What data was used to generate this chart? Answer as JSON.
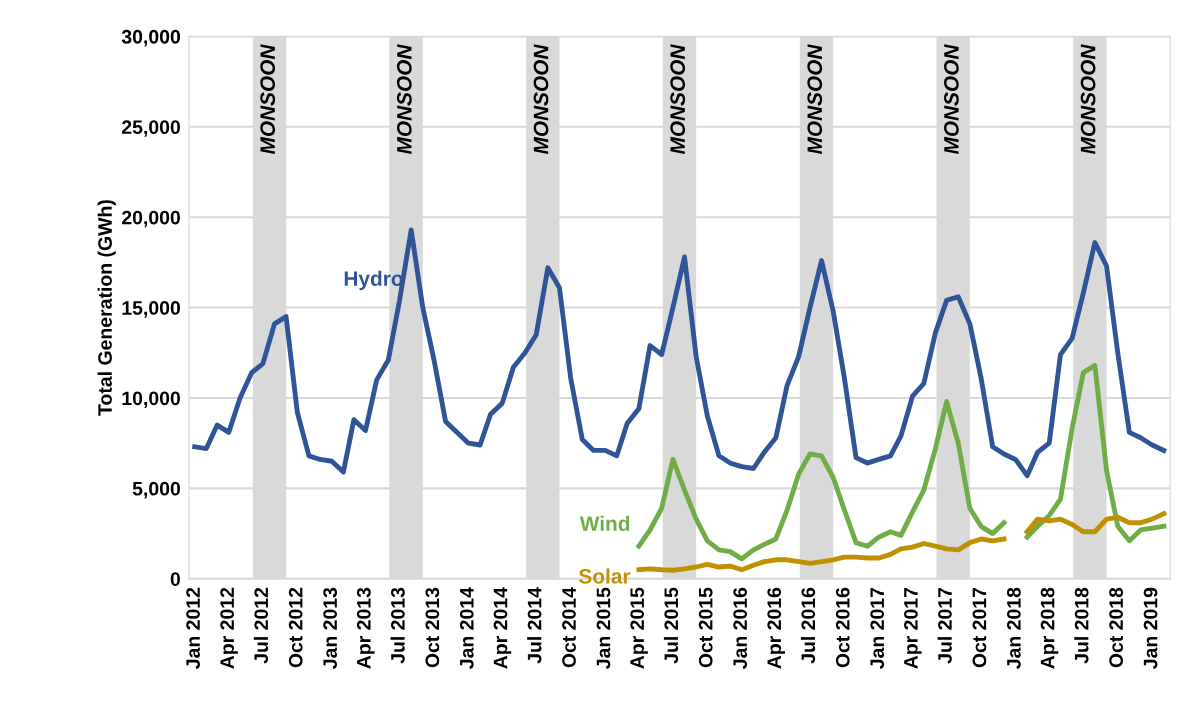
{
  "chart_data": {
    "type": "line",
    "ylabel": "Total Generation (GWh)",
    "x": [
      "2012-01",
      "2012-02",
      "2012-03",
      "2012-04",
      "2012-05",
      "2012-06",
      "2012-07",
      "2012-08",
      "2012-09",
      "2012-10",
      "2012-11",
      "2012-12",
      "2013-01",
      "2013-02",
      "2013-03",
      "2013-04",
      "2013-05",
      "2013-06",
      "2013-07",
      "2013-08",
      "2013-09",
      "2013-10",
      "2013-11",
      "2013-12",
      "2014-01",
      "2014-02",
      "2014-03",
      "2014-04",
      "2014-05",
      "2014-06",
      "2014-07",
      "2014-08",
      "2014-09",
      "2014-10",
      "2014-11",
      "2014-12",
      "2015-01",
      "2015-02",
      "2015-03",
      "2015-04",
      "2015-05",
      "2015-06",
      "2015-07",
      "2015-08",
      "2015-09",
      "2015-10",
      "2015-11",
      "2015-12",
      "2016-01",
      "2016-02",
      "2016-03",
      "2016-04",
      "2016-05",
      "2016-06",
      "2016-07",
      "2016-08",
      "2016-09",
      "2016-10",
      "2016-11",
      "2016-12",
      "2017-01",
      "2017-02",
      "2017-03",
      "2017-04",
      "2017-05",
      "2017-06",
      "2017-07",
      "2017-08",
      "2017-09",
      "2017-10",
      "2017-11",
      "2017-12",
      "2018-01",
      "2018-02",
      "2018-03",
      "2018-04",
      "2018-05",
      "2018-06",
      "2018-07",
      "2018-08",
      "2018-09",
      "2018-10",
      "2018-11",
      "2018-12",
      "2019-01",
      "2019-02"
    ],
    "series": [
      {
        "name": "Hydro",
        "color": "#2f5597",
        "values": [
          7300,
          7200,
          8500,
          8100,
          10000,
          11400,
          11900,
          14100,
          14500,
          9200,
          6800,
          6600,
          6500,
          5900,
          8800,
          8200,
          11000,
          12100,
          15400,
          19300,
          15000,
          12100,
          8700,
          8100,
          7500,
          7400,
          9100,
          9700,
          11700,
          12500,
          13500,
          17200,
          16100,
          11100,
          7700,
          7100,
          7100,
          6800,
          8600,
          9400,
          12900,
          12400,
          15000,
          17800,
          12300,
          9000,
          6800,
          6400,
          6200,
          6100,
          7000,
          7800,
          10700,
          12300,
          15000,
          17600,
          14800,
          11100,
          6700,
          6400,
          6600,
          6800,
          7900,
          10100,
          10800,
          13600,
          15400,
          15600,
          14100,
          11100,
          7300,
          6900,
          6600,
          5700,
          7000,
          7500,
          12400,
          13300,
          15800,
          18600,
          17300,
          12500,
          8100,
          7800,
          7400,
          7100
        ]
      },
      {
        "name": "Wind",
        "color": "#70ad47",
        "values": [
          null,
          null,
          null,
          null,
          null,
          null,
          null,
          null,
          null,
          null,
          null,
          null,
          null,
          null,
          null,
          null,
          null,
          null,
          null,
          null,
          null,
          null,
          null,
          null,
          null,
          null,
          null,
          null,
          null,
          null,
          null,
          null,
          null,
          null,
          null,
          null,
          null,
          null,
          null,
          1800,
          2700,
          3900,
          6600,
          4900,
          3300,
          2100,
          1600,
          1500,
          1100,
          1600,
          1900,
          2200,
          3800,
          5800,
          6900,
          6800,
          5600,
          3800,
          2000,
          1800,
          2300,
          2600,
          2400,
          3700,
          4900,
          7200,
          9800,
          7500,
          3900,
          2900,
          2500,
          3100,
          null,
          2300,
          2900,
          3500,
          4400,
          8300,
          11400,
          11800,
          6000,
          2900,
          2100,
          2700,
          2800,
          2900
        ]
      },
      {
        "name": "Solar",
        "color": "#bf9000",
        "values": [
          null,
          null,
          null,
          null,
          null,
          null,
          null,
          null,
          null,
          null,
          null,
          null,
          null,
          null,
          null,
          null,
          null,
          null,
          null,
          null,
          null,
          null,
          null,
          null,
          null,
          null,
          null,
          null,
          null,
          null,
          null,
          null,
          null,
          null,
          null,
          null,
          null,
          null,
          null,
          500,
          550,
          500,
          470,
          550,
          650,
          800,
          650,
          700,
          500,
          750,
          950,
          1050,
          1050,
          950,
          850,
          950,
          1050,
          1200,
          1200,
          1150,
          1150,
          1350,
          1650,
          1750,
          1950,
          1800,
          1650,
          1600,
          2000,
          2200,
          2100,
          2200,
          null,
          2600,
          3300,
          3200,
          3300,
          3000,
          2600,
          2600,
          3300,
          3400,
          3100,
          3100,
          3300,
          3600
        ]
      }
    ],
    "xlim": [
      "2011-12-17",
      "2019-02-18"
    ],
    "xticks": [
      {
        "value": "2012-01",
        "label": "Jan 2012"
      },
      {
        "value": "2012-04",
        "label": "Apr 2012"
      },
      {
        "value": "2012-07",
        "label": "Jul 2012"
      },
      {
        "value": "2012-10",
        "label": "Oct 2012"
      },
      {
        "value": "2013-01",
        "label": "Jan 2013"
      },
      {
        "value": "2013-04",
        "label": "Apr 2013"
      },
      {
        "value": "2013-07",
        "label": "Jul 2013"
      },
      {
        "value": "2013-10",
        "label": "Oct 2013"
      },
      {
        "value": "2014-01",
        "label": "Jan 2014"
      },
      {
        "value": "2014-04",
        "label": "Apr 2014"
      },
      {
        "value": "2014-07",
        "label": "Jul 2014"
      },
      {
        "value": "2014-10",
        "label": "Oct 2014"
      },
      {
        "value": "2015-01",
        "label": "Jan 2015"
      },
      {
        "value": "2015-04",
        "label": "Apr 2015"
      },
      {
        "value": "2015-07",
        "label": "Jul 2015"
      },
      {
        "value": "2015-10",
        "label": "Oct 2015"
      },
      {
        "value": "2016-01",
        "label": "Jan 2016"
      },
      {
        "value": "2016-04",
        "label": "Apr 2016"
      },
      {
        "value": "2016-07",
        "label": "Jul 2016"
      },
      {
        "value": "2016-10",
        "label": "Oct 2016"
      },
      {
        "value": "2017-01",
        "label": "Jan 2017"
      },
      {
        "value": "2017-04",
        "label": "Apr 2017"
      },
      {
        "value": "2017-07",
        "label": "Jul 2017"
      },
      {
        "value": "2017-10",
        "label": "Oct 2017"
      },
      {
        "value": "2018-01",
        "label": "Jan 2018"
      },
      {
        "value": "2018-04",
        "label": "Apr 2018"
      },
      {
        "value": "2018-07",
        "label": "Jul 2018"
      },
      {
        "value": "2018-10",
        "label": "Oct 2018"
      },
      {
        "value": "2019-01",
        "label": "Jan 2019"
      }
    ],
    "ylim": [
      0,
      30000
    ],
    "yticks": [
      0,
      {
        "value": 5000,
        "label": "5,000"
      },
      {
        "value": 10000,
        "label": "10,000"
      },
      {
        "value": 15000,
        "label": "15,000"
      },
      {
        "value": 20000,
        "label": "20,000"
      },
      {
        "value": 25000,
        "label": "25,000"
      },
      {
        "value": 30000,
        "label": "30,000"
      }
    ],
    "bands": [
      {
        "axis": "x",
        "from": "2012-06-04",
        "to": "2012-09-01",
        "label": "MONSOON",
        "color": "#d9d9d9"
      },
      {
        "axis": "x",
        "from": "2013-06-04",
        "to": "2013-09-01",
        "label": "MONSOON",
        "color": "#d9d9d9"
      },
      {
        "axis": "x",
        "from": "2014-06-04",
        "to": "2014-09-01",
        "label": "MONSOON",
        "color": "#d9d9d9"
      },
      {
        "axis": "x",
        "from": "2015-06-04",
        "to": "2015-09-01",
        "label": "MONSOON",
        "color": "#d9d9d9"
      },
      {
        "axis": "x",
        "from": "2016-06-04",
        "to": "2016-09-01",
        "label": "MONSOON",
        "color": "#d9d9d9"
      },
      {
        "axis": "x",
        "from": "2017-06-04",
        "to": "2017-09-01",
        "label": "MONSOON",
        "color": "#d9d9d9"
      },
      {
        "axis": "x",
        "from": "2018-06-04",
        "to": "2018-09-01",
        "label": "MONSOON",
        "color": "#d9d9d9"
      }
    ],
    "grid": "y",
    "legend": false,
    "marker": "none",
    "line_style": "solid"
  }
}
